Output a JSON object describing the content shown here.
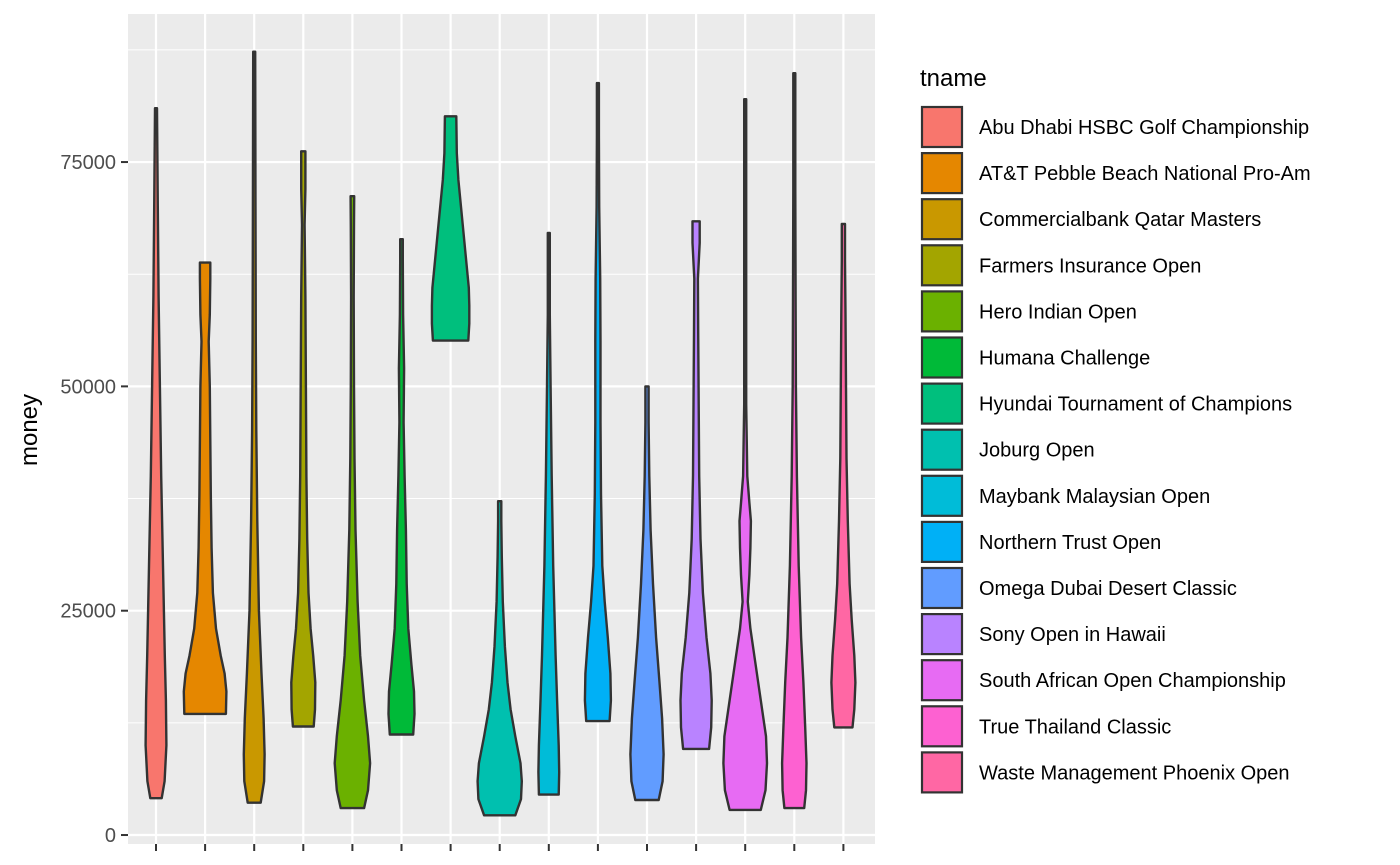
{
  "chart_data": {
    "type": "violin",
    "ylabel": "money",
    "xlabel": "",
    "ylim": [
      -1000,
      91500
    ],
    "y_ticks": [
      0,
      25000,
      50000,
      75000
    ],
    "y_tick_labels": [
      "0",
      "25000",
      "50000",
      "75000"
    ],
    "x_tick_labels": [],
    "grid": true,
    "legend": {
      "title": "tname",
      "position": "right"
    },
    "series": [
      {
        "name": "Abu Dhabi HSBC Golf Championship",
        "color": "#F8766D",
        "min": 4100,
        "max": 81000,
        "profile": [
          [
            4100,
            0.22
          ],
          [
            6000,
            0.33
          ],
          [
            10000,
            0.4
          ],
          [
            15000,
            0.38
          ],
          [
            20000,
            0.34
          ],
          [
            30000,
            0.27
          ],
          [
            40000,
            0.2
          ],
          [
            50000,
            0.15
          ],
          [
            60000,
            0.1
          ],
          [
            70000,
            0.07
          ],
          [
            81000,
            0.04
          ]
        ]
      },
      {
        "name": "AT&T Pebble Beach National Pro-Am",
        "color": "#E58700",
        "min": 13500,
        "max": 63800,
        "profile": [
          [
            13500,
            0.8
          ],
          [
            16000,
            0.82
          ],
          [
            18000,
            0.75
          ],
          [
            20000,
            0.6
          ],
          [
            23000,
            0.42
          ],
          [
            27000,
            0.3
          ],
          [
            32000,
            0.25
          ],
          [
            38000,
            0.22
          ],
          [
            44000,
            0.2
          ],
          [
            50000,
            0.18
          ],
          [
            55000,
            0.14
          ],
          [
            58000,
            0.18
          ],
          [
            62000,
            0.2
          ],
          [
            63800,
            0.2
          ]
        ]
      },
      {
        "name": "Commercialbank Qatar Masters",
        "color": "#C99800",
        "min": 3600,
        "max": 87300,
        "profile": [
          [
            3600,
            0.25
          ],
          [
            6000,
            0.38
          ],
          [
            9000,
            0.4
          ],
          [
            13000,
            0.36
          ],
          [
            18000,
            0.28
          ],
          [
            25000,
            0.18
          ],
          [
            35000,
            0.12
          ],
          [
            45000,
            0.08
          ],
          [
            55000,
            0.06
          ],
          [
            70000,
            0.05
          ],
          [
            87300,
            0.04
          ]
        ]
      },
      {
        "name": "Farmers Insurance Open",
        "color": "#A3A500",
        "min": 12100,
        "max": 76200,
        "profile": [
          [
            12100,
            0.4
          ],
          [
            14000,
            0.45
          ],
          [
            17000,
            0.46
          ],
          [
            20000,
            0.38
          ],
          [
            23000,
            0.28
          ],
          [
            27000,
            0.2
          ],
          [
            33000,
            0.15
          ],
          [
            40000,
            0.12
          ],
          [
            50000,
            0.1
          ],
          [
            60000,
            0.08
          ],
          [
            68000,
            0.05
          ],
          [
            72000,
            0.08
          ],
          [
            76200,
            0.08
          ]
        ]
      },
      {
        "name": "Hero Indian Open",
        "color": "#6BB100",
        "min": 3000,
        "max": 71200,
        "profile": [
          [
            3000,
            0.45
          ],
          [
            5000,
            0.6
          ],
          [
            8000,
            0.68
          ],
          [
            11000,
            0.6
          ],
          [
            15000,
            0.45
          ],
          [
            20000,
            0.3
          ],
          [
            26000,
            0.2
          ],
          [
            34000,
            0.12
          ],
          [
            42000,
            0.08
          ],
          [
            50000,
            0.06
          ],
          [
            60000,
            0.05
          ],
          [
            68000,
            0.06
          ],
          [
            71200,
            0.07
          ]
        ]
      },
      {
        "name": "Humana Challenge",
        "color": "#00BA38",
        "min": 11200,
        "max": 66400,
        "profile": [
          [
            11200,
            0.45
          ],
          [
            13500,
            0.5
          ],
          [
            16000,
            0.48
          ],
          [
            19000,
            0.38
          ],
          [
            23000,
            0.26
          ],
          [
            28000,
            0.2
          ],
          [
            34000,
            0.17
          ],
          [
            40000,
            0.12
          ],
          [
            46000,
            0.08
          ],
          [
            52000,
            0.1
          ],
          [
            58000,
            0.06
          ],
          [
            64000,
            0.05
          ],
          [
            66400,
            0.05
          ]
        ]
      },
      {
        "name": "Hyundai Tournament of Champions",
        "color": "#00BF7D",
        "min": 55100,
        "max": 80100,
        "profile": [
          [
            55100,
            0.68
          ],
          [
            57000,
            0.72
          ],
          [
            59000,
            0.72
          ],
          [
            61000,
            0.7
          ],
          [
            64000,
            0.6
          ],
          [
            67000,
            0.5
          ],
          [
            70000,
            0.4
          ],
          [
            73000,
            0.3
          ],
          [
            76000,
            0.24
          ],
          [
            80100,
            0.22
          ]
        ]
      },
      {
        "name": "Joburg Open",
        "color": "#00C0AF",
        "min": 2200,
        "max": 37200,
        "profile": [
          [
            2200,
            0.6
          ],
          [
            4000,
            0.82
          ],
          [
            6000,
            0.85
          ],
          [
            8000,
            0.8
          ],
          [
            11000,
            0.6
          ],
          [
            14000,
            0.42
          ],
          [
            17000,
            0.3
          ],
          [
            21000,
            0.2
          ],
          [
            26000,
            0.12
          ],
          [
            31000,
            0.08
          ],
          [
            35000,
            0.06
          ],
          [
            37200,
            0.06
          ]
        ]
      },
      {
        "name": "Maybank Malaysian Open",
        "color": "#00BCD8",
        "min": 4500,
        "max": 67100,
        "profile": [
          [
            4500,
            0.38
          ],
          [
            7000,
            0.4
          ],
          [
            10000,
            0.38
          ],
          [
            15000,
            0.32
          ],
          [
            20000,
            0.26
          ],
          [
            30000,
            0.17
          ],
          [
            40000,
            0.11
          ],
          [
            50000,
            0.07
          ],
          [
            58000,
            0.04
          ],
          [
            63000,
            0.04
          ],
          [
            67100,
            0.04
          ]
        ]
      },
      {
        "name": "Northern Trust Open",
        "color": "#00B0F6",
        "min": 12700,
        "max": 83800,
        "profile": [
          [
            12700,
            0.45
          ],
          [
            15000,
            0.5
          ],
          [
            18000,
            0.48
          ],
          [
            22000,
            0.38
          ],
          [
            26000,
            0.26
          ],
          [
            30000,
            0.17
          ],
          [
            38000,
            0.12
          ],
          [
            46000,
            0.1
          ],
          [
            55000,
            0.1
          ],
          [
            62000,
            0.09
          ],
          [
            70000,
            0.05
          ],
          [
            78000,
            0.04
          ],
          [
            83800,
            0.04
          ]
        ]
      },
      {
        "name": "Omega Dubai Desert Classic",
        "color": "#619CFF",
        "min": 3900,
        "max": 50000,
        "profile": [
          [
            3900,
            0.45
          ],
          [
            6000,
            0.6
          ],
          [
            9000,
            0.64
          ],
          [
            13000,
            0.58
          ],
          [
            17000,
            0.48
          ],
          [
            22000,
            0.35
          ],
          [
            28000,
            0.23
          ],
          [
            34000,
            0.14
          ],
          [
            40000,
            0.09
          ],
          [
            46000,
            0.06
          ],
          [
            50000,
            0.06
          ]
        ]
      },
      {
        "name": "Sony Open in Hawaii",
        "color": "#B983FF",
        "min": 9600,
        "max": 68400,
        "profile": [
          [
            9600,
            0.5
          ],
          [
            12000,
            0.58
          ],
          [
            15000,
            0.6
          ],
          [
            18000,
            0.55
          ],
          [
            22000,
            0.4
          ],
          [
            27000,
            0.26
          ],
          [
            33000,
            0.17
          ],
          [
            40000,
            0.12
          ],
          [
            48000,
            0.1
          ],
          [
            56000,
            0.08
          ],
          [
            62000,
            0.07
          ],
          [
            66000,
            0.14
          ],
          [
            68400,
            0.14
          ]
        ]
      },
      {
        "name": "South African Open Championship",
        "color": "#E76BF3",
        "min": 2800,
        "max": 82000,
        "profile": [
          [
            2800,
            0.6
          ],
          [
            5000,
            0.78
          ],
          [
            8000,
            0.84
          ],
          [
            11000,
            0.8
          ],
          [
            15000,
            0.6
          ],
          [
            19000,
            0.4
          ],
          [
            23000,
            0.2
          ],
          [
            26000,
            0.1
          ],
          [
            29000,
            0.16
          ],
          [
            32000,
            0.2
          ],
          [
            35000,
            0.22
          ],
          [
            37000,
            0.16
          ],
          [
            40000,
            0.08
          ],
          [
            48000,
            0.04
          ],
          [
            60000,
            0.04
          ],
          [
            72000,
            0.04
          ],
          [
            82000,
            0.04
          ]
        ]
      },
      {
        "name": "True Thailand Classic",
        "color": "#FD61D1",
        "min": 3000,
        "max": 84900,
        "profile": [
          [
            3000,
            0.38
          ],
          [
            5000,
            0.45
          ],
          [
            8000,
            0.47
          ],
          [
            12000,
            0.42
          ],
          [
            17000,
            0.35
          ],
          [
            22000,
            0.26
          ],
          [
            30000,
            0.17
          ],
          [
            40000,
            0.1
          ],
          [
            50000,
            0.06
          ],
          [
            60000,
            0.05
          ],
          [
            72000,
            0.04
          ],
          [
            84900,
            0.04
          ]
        ]
      },
      {
        "name": "Waste Management Phoenix Open",
        "color": "#FF67A4",
        "min": 12000,
        "max": 68100,
        "profile": [
          [
            12000,
            0.35
          ],
          [
            14000,
            0.42
          ],
          [
            17000,
            0.46
          ],
          [
            20000,
            0.42
          ],
          [
            24000,
            0.32
          ],
          [
            28000,
            0.24
          ],
          [
            35000,
            0.17
          ],
          [
            42000,
            0.12
          ],
          [
            50000,
            0.1
          ],
          [
            58000,
            0.08
          ],
          [
            64000,
            0.06
          ],
          [
            68100,
            0.06
          ]
        ]
      }
    ]
  }
}
